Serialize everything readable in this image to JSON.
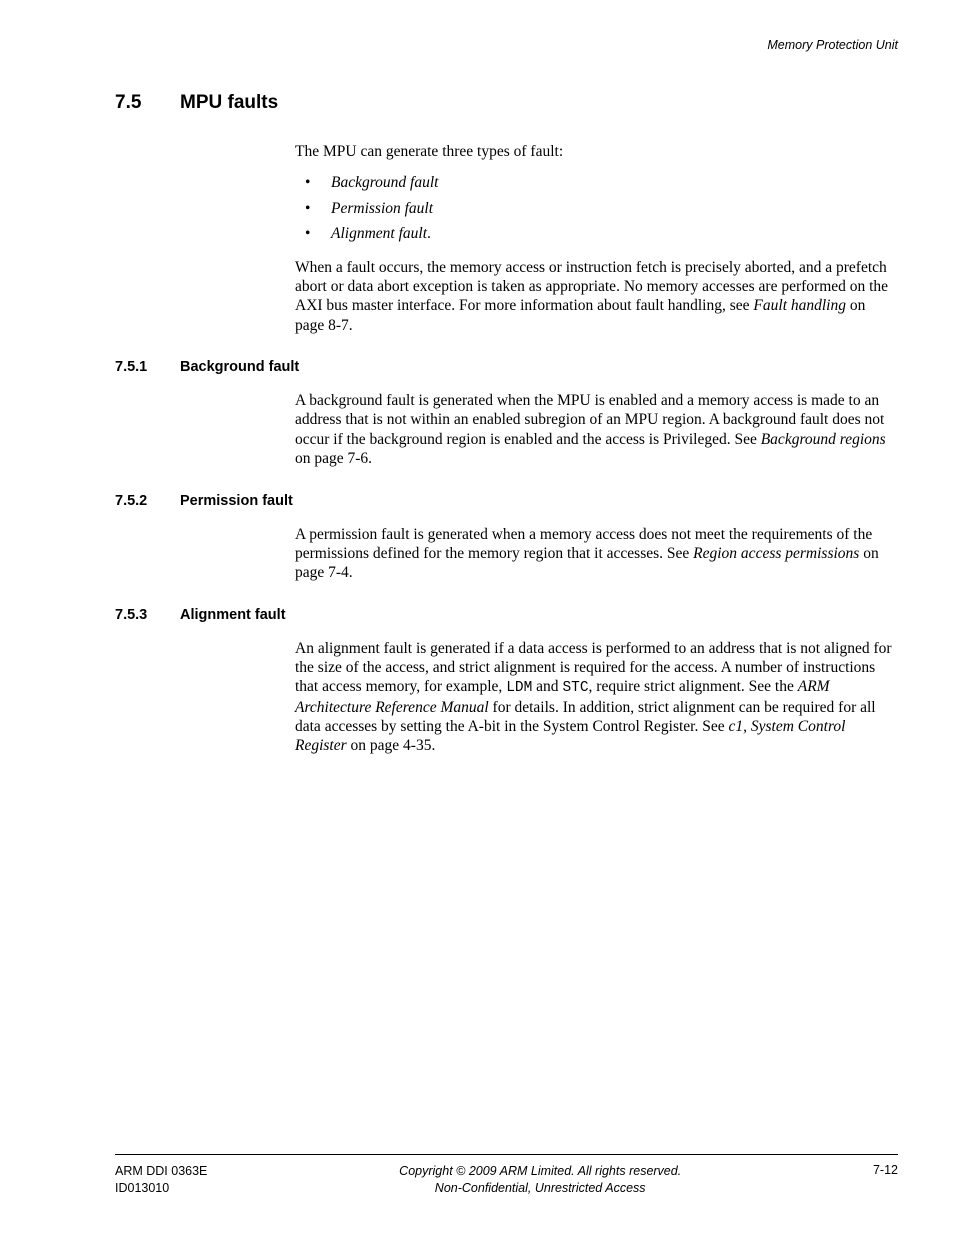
{
  "running_header": "Memory Protection Unit",
  "section": {
    "number": "7.5",
    "title": "MPU faults",
    "intro": "The MPU can generate three types of fault:",
    "bullets": [
      {
        "text": "Background fault",
        "trailing": ""
      },
      {
        "text": "Permission fault",
        "trailing": ""
      },
      {
        "text": "Alignment fault",
        "trailing": "."
      }
    ],
    "after_bullets_pre": "When a fault occurs, the memory access or instruction fetch is precisely aborted, and a prefetch abort or data abort exception is taken as appropriate. No memory accesses are performed on the AXI bus master interface. For more information about fault handling, see ",
    "after_bullets_link": "Fault handling",
    "after_bullets_post": " on page 8-7."
  },
  "sub1": {
    "number": "7.5.1",
    "title": "Background fault",
    "body_pre": "A background fault is generated when the MPU is enabled and a memory access is made to an address that is not within an enabled subregion of an MPU region. A background fault does not occur if the background region is enabled and the access is Privileged. See ",
    "body_link": "Background regions",
    "body_post": " on page 7-6."
  },
  "sub2": {
    "number": "7.5.2",
    "title": "Permission fault",
    "body_pre": "A permission fault is generated when a memory access does not meet the requirements of the permissions defined for the memory region that it accesses. See ",
    "body_link": "Region access permissions",
    "body_post": " on page 7-4."
  },
  "sub3": {
    "number": "7.5.3",
    "title": "Alignment fault",
    "body_pre1": "An alignment fault is generated if a data access is performed to an address that is not aligned for the size of the access, and strict alignment is required for the access. A number of instructions that access memory, for example, ",
    "code1": "LDM",
    "mid1": " and ",
    "code2": "STC",
    "mid2": ", require strict alignment. See the ",
    "ital1": "ARM Architecture Reference Manual",
    "mid3": " for details. In addition, strict alignment can be required for all data accesses by setting the A-bit in the System Control Register. See ",
    "ital2": "c1, System Control Register",
    "post": " on page 4-35."
  },
  "footer": {
    "left1": "ARM DDI 0363E",
    "left2": "ID013010",
    "center1": "Copyright © 2009 ARM Limited. All rights reserved.",
    "center2": "Non-Confidential, Unrestricted Access",
    "right": "7-12"
  },
  "style": {
    "body_font_size_pt": 11.5,
    "heading_font_family": "Arial",
    "body_font_family": "Times New Roman",
    "text_color": "#000000",
    "background_color": "#ffffff"
  }
}
